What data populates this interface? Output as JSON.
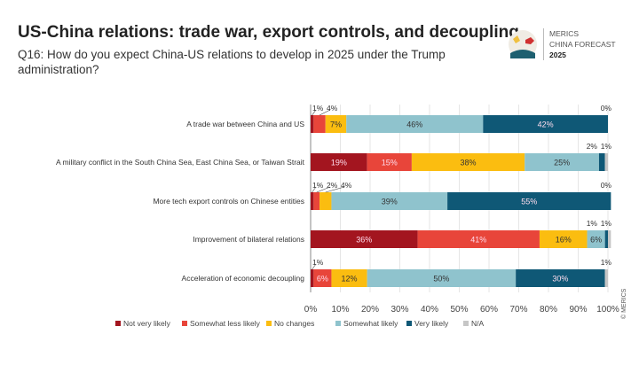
{
  "header": {
    "title": "US-China relations: trade war, export controls, and decoupling",
    "subtitle": "Q16: How do you expect China-US relations to develop in 2025 under the Trump administration?"
  },
  "logo": {
    "line1": "MERICS",
    "line2": "CHINA FORECAST",
    "line3": "2025"
  },
  "credit": "© MERICS",
  "chart_data": {
    "type": "bar",
    "orientation": "horizontal",
    "stacked": true,
    "categories": [
      "A trade war between China and US",
      "A military conflict in the South China Sea, East China Sea, or Taiwan Strait",
      "More tech export controls on Chinese entities",
      "Improvement of bilateral relations",
      "Acceleration of economic decoupling"
    ],
    "series": [
      {
        "name": "Not very likely",
        "color": "#a3151f",
        "values": [
          1,
          19,
          1,
          36,
          1
        ]
      },
      {
        "name": "Somewhat less likely",
        "color": "#e8453a",
        "values": [
          4,
          15,
          2,
          41,
          6
        ]
      },
      {
        "name": "No changes",
        "color": "#fbbd10",
        "values": [
          7,
          38,
          4,
          16,
          12
        ]
      },
      {
        "name": "Somewhat likely",
        "color": "#8fc3cd",
        "values": [
          46,
          25,
          39,
          6,
          50
        ]
      },
      {
        "name": "Very likely",
        "color": "#0f5876",
        "values": [
          42,
          2,
          55,
          1,
          30
        ]
      },
      {
        "name": "N/A",
        "color": "#c6c6c6",
        "values": [
          0,
          1,
          0,
          1,
          1
        ]
      }
    ],
    "xlim": [
      0,
      100
    ],
    "xticks": [
      "0%",
      "10%",
      "20%",
      "30%",
      "40%",
      "50%",
      "60%",
      "70%",
      "80%",
      "90%",
      "100%"
    ],
    "grid": true,
    "legend_position": "bottom"
  }
}
